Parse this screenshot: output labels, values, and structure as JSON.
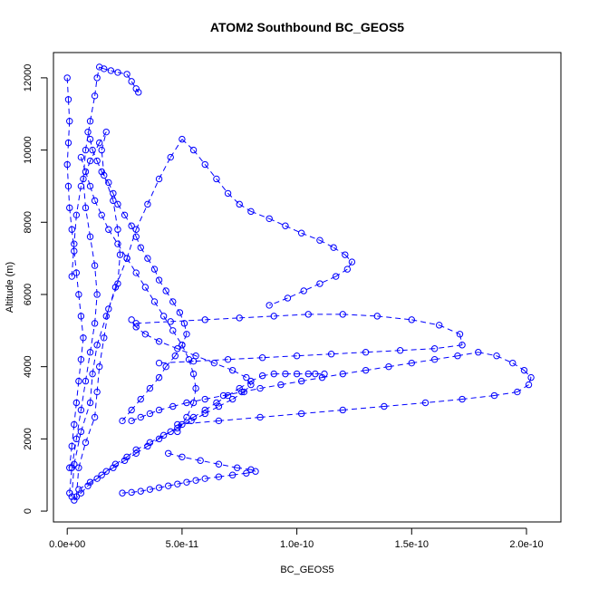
{
  "chart_data": {
    "type": "scatter",
    "title": "ATOM2 Southbound BC_GEOS5",
    "xlabel": "BC_GEOS5",
    "ylabel": "Altitude (m)",
    "xlim": [
      -6e-12,
      2.15e-10
    ],
    "ylim": [
      -300,
      12700
    ],
    "x_ticks": [
      0,
      5e-11,
      1e-10,
      1.5e-10,
      2e-10
    ],
    "x_tick_labels": [
      "0.0e+00",
      "5.0e-11",
      "1.0e-10",
      "1.5e-10",
      "2.0e-10"
    ],
    "y_ticks": [
      0,
      2000,
      4000,
      6000,
      8000,
      10000,
      12000
    ],
    "y_tick_labels": [
      "0",
      "2000",
      "4000",
      "6000",
      "8000",
      "10000",
      "12000"
    ],
    "marker": "open-circle",
    "connect_points": "dashed-line",
    "color": "#0000ff",
    "grid": false,
    "series": [
      {
        "x": [
          4e-12,
          5e-12,
          8e-12,
          1.2e-11,
          1.3e-11,
          1.4e-11,
          1.6e-11,
          1.8e-11,
          2.2e-11,
          2.3e-11,
          2.2e-11,
          2e-11,
          1.6e-11,
          1.5e-11,
          1.7e-11,
          1.4e-11,
          1e-11,
          6e-12,
          4e-12,
          3e-12,
          2e-12
        ],
        "y": [
          400,
          1200,
          1900,
          2600,
          3300,
          4000,
          4800,
          5600,
          6300,
          7100,
          7800,
          8600,
          9300,
          10000,
          10500,
          10200,
          9700,
          9000,
          8200,
          7400,
          6500
        ]
      },
      {
        "x": [
          2e-12,
          3e-12,
          6e-12,
          1e-11,
          1.1e-11,
          1.3e-11,
          1.7e-11,
          2.1e-11,
          2.6e-11,
          3e-11,
          3.5e-11,
          4e-11,
          4.5e-11,
          5e-11,
          5.5e-11,
          6e-11,
          6.5e-11,
          7e-11,
          7.5e-11,
          8e-11,
          8.8e-11,
          9.5e-11,
          1.02e-10,
          1.1e-10,
          1.16e-10,
          1.21e-10,
          1.24e-10,
          1.22e-10,
          1.17e-10,
          1.1e-10,
          1.03e-10,
          9.6e-11,
          8.8e-11
        ],
        "y": [
          400,
          1300,
          2200,
          3000,
          3800,
          4600,
          5400,
          6200,
          7000,
          7800,
          8500,
          9200,
          9800,
          10300,
          10000,
          9600,
          9200,
          8800,
          8500,
          8300,
          8100,
          7900,
          7700,
          7500,
          7300,
          7100,
          6900,
          6700,
          6500,
          6300,
          6100,
          5900,
          5700
        ]
      },
      {
        "x": [
          2.8e-11,
          3.2e-11,
          3.6e-11,
          4e-11,
          4.6e-11,
          5.2e-11,
          6e-11,
          6.8e-11,
          7.6e-11,
          8.4e-11,
          9.3e-11,
          1.02e-10,
          1.11e-10,
          1.2e-10,
          1.3e-10,
          1.4e-10,
          1.5e-10,
          1.6e-10,
          1.7e-10,
          1.79e-10,
          1.87e-10,
          1.94e-10,
          1.99e-10,
          2.02e-10,
          2.01e-10,
          1.96e-10,
          1.86e-10,
          1.72e-10,
          1.56e-10,
          1.38e-10,
          1.2e-10,
          1.02e-10,
          8.4e-11,
          6.6e-11,
          4.8e-11
        ],
        "y": [
          2500,
          2600,
          2700,
          2800,
          2900,
          3000,
          3100,
          3200,
          3300,
          3400,
          3500,
          3600,
          3700,
          3800,
          3900,
          4000,
          4100,
          4200,
          4300,
          4400,
          4300,
          4100,
          3900,
          3700,
          3500,
          3300,
          3200,
          3100,
          3000,
          2900,
          2800,
          2700,
          2600,
          2500,
          2400
        ]
      },
      {
        "x": [
          3e-11,
          4.5e-11,
          6e-11,
          7.5e-11,
          9e-11,
          1.05e-10,
          1.2e-10,
          1.35e-10,
          1.5e-10,
          1.62e-10,
          1.71e-10,
          1.72e-10,
          1.6e-10,
          1.45e-10,
          1.3e-10,
          1.15e-10,
          1e-10,
          8.5e-11,
          7e-11,
          5.5e-11,
          4e-11
        ],
        "y": [
          5200,
          5250,
          5300,
          5350,
          5400,
          5450,
          5450,
          5400,
          5300,
          5150,
          4900,
          4600,
          4500,
          4450,
          4400,
          4350,
          4300,
          4250,
          4200,
          4150,
          4100
        ]
      },
      {
        "x": [
          5e-12,
          1e-11,
          1.5e-11,
          2e-11,
          2.5e-11,
          3e-11,
          3.5e-11,
          4e-11,
          4.5e-11,
          5e-11,
          5.5e-11,
          6e-11,
          6.5e-11,
          7e-11,
          7.5e-11,
          8e-11,
          8.5e-11,
          9e-11,
          9.5e-11,
          1e-10,
          1.05e-10,
          1.08e-10,
          1.12e-10
        ],
        "y": [
          600,
          800,
          1000,
          1200,
          1400,
          1600,
          1800,
          2000,
          2200,
          2400,
          2600,
          2800,
          3000,
          3200,
          3400,
          3600,
          3750,
          3800,
          3800,
          3800,
          3800,
          3800,
          3800
        ]
      },
      {
        "x": [
          1e-12,
          2e-12,
          4e-12,
          6e-12,
          8e-12,
          1e-11,
          1.2e-11,
          1.3e-11,
          1.2e-11,
          1e-11,
          8e-12,
          7e-12,
          8e-12,
          1e-11,
          1.2e-11,
          1.3e-11,
          1.4e-11,
          1.6e-11,
          1.9e-11,
          2.2e-11,
          2.6e-11,
          2.8e-11,
          3e-11,
          3.1e-11
        ],
        "y": [
          500,
          1200,
          2000,
          2800,
          3600,
          4400,
          5200,
          6000,
          6800,
          7600,
          8400,
          9200,
          10000,
          10800,
          11500,
          12000,
          12300,
          12250,
          12200,
          12150,
          12100,
          11900,
          11700,
          11600
        ]
      },
      {
        "x": [
          3e-12,
          6e-12,
          9e-12,
          1.3e-11,
          1.7e-11,
          2.1e-11,
          2.6e-11,
          3e-11,
          3.6e-11,
          4.2e-11,
          4.8e-11,
          5.4e-11,
          6e-11,
          6.6e-11,
          7.2e-11,
          7.7e-11,
          8e-11,
          7.8e-11,
          7.2e-11,
          6.4e-11,
          5.6e-11,
          4.8e-11,
          4e-11,
          3.4e-11,
          3e-11,
          2.8e-11
        ],
        "y": [
          300,
          500,
          700,
          900,
          1100,
          1300,
          1500,
          1700,
          1900,
          2100,
          2300,
          2500,
          2700,
          2900,
          3100,
          3300,
          3500,
          3700,
          3900,
          4100,
          4300,
          4500,
          4700,
          4900,
          5100,
          5300
        ]
      },
      {
        "x": [
          2.4e-11,
          2.8e-11,
          3.2e-11,
          3.6e-11,
          4e-11,
          4.4e-11,
          4.8e-11,
          5.2e-11,
          5.6e-11,
          6e-11,
          6.6e-11,
          7.2e-11,
          7.8e-11,
          8.2e-11,
          8e-11,
          7.4e-11,
          6.6e-11,
          5.8e-11,
          5e-11,
          4.4e-11
        ],
        "y": [
          500,
          520,
          550,
          600,
          650,
          700,
          750,
          800,
          850,
          900,
          950,
          1000,
          1050,
          1100,
          1150,
          1200,
          1300,
          1400,
          1500,
          1600
        ]
      },
      {
        "x": [
          6e-12,
          8e-12,
          1e-11,
          1.2e-11,
          1.5e-11,
          1.8e-11,
          2.2e-11,
          2.6e-11,
          3e-11,
          3.4e-11,
          3.8e-11,
          4.2e-11,
          4.6e-11,
          5e-11,
          5.3e-11,
          5.5e-11,
          5.6e-11,
          5.5e-11,
          5.2e-11,
          4.8e-11
        ],
        "y": [
          9800,
          9400,
          9000,
          8600,
          8200,
          7800,
          7400,
          7000,
          6600,
          6200,
          5800,
          5400,
          5000,
          4600,
          4200,
          3800,
          3400,
          3000,
          2600,
          2200
        ]
      },
      {
        "x": [
          9e-12,
          1e-11,
          1.1e-11,
          1.3e-11,
          1.5e-11,
          1.8e-11,
          2e-11,
          2.2e-11,
          2.5e-11,
          2.8e-11,
          3e-11,
          3.2e-11,
          3.5e-11,
          3.8e-11,
          4e-11,
          4.3e-11,
          4.6e-11,
          4.9e-11,
          5.1e-11,
          5.2e-11,
          5e-11,
          4.7e-11,
          4.3e-11,
          4e-11,
          3.6e-11,
          3.2e-11,
          2.8e-11,
          2.4e-11
        ],
        "y": [
          10500,
          10300,
          10000,
          9700,
          9400,
          9100,
          8800,
          8500,
          8200,
          7900,
          7600,
          7300,
          7000,
          6700,
          6400,
          6100,
          5800,
          5500,
          5200,
          4900,
          4600,
          4300,
          4000,
          3700,
          3400,
          3100,
          2800,
          2500
        ]
      },
      {
        "x": [
          0.0,
          5e-13,
          1e-12,
          5e-13,
          0.0,
          5e-13,
          1e-12,
          2e-12,
          3e-12,
          4e-12,
          5e-12,
          6e-12,
          7e-12,
          6e-12,
          5e-12,
          4e-12,
          3e-12,
          2e-12,
          1e-12
        ],
        "y": [
          12000,
          11400,
          10800,
          10200,
          9600,
          9000,
          8400,
          7800,
          7200,
          6600,
          6000,
          5400,
          4800,
          4200,
          3600,
          3000,
          2400,
          1800,
          1200
        ]
      }
    ]
  }
}
